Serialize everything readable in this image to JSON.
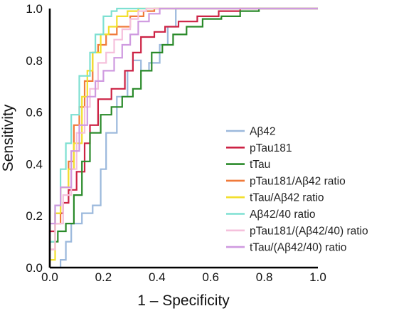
{
  "chart_data": {
    "type": "line",
    "title": "",
    "xlabel": "1 – Specificity",
    "ylabel": "Sensitivity",
    "xlim": [
      0,
      1
    ],
    "ylim": [
      0,
      1
    ],
    "xticks": [
      "0.0",
      "0.2",
      "0.4",
      "0.6",
      "0.8",
      "1.0"
    ],
    "yticks": [
      "0.0",
      "0.2",
      "0.4",
      "0.6",
      "0.8",
      "1.0"
    ],
    "grid": false,
    "legend_position": "bottom-right",
    "series": [
      {
        "name": "Aβ42",
        "color": "#9bb8dc",
        "x": [
          0,
          0.03,
          0.04,
          0.04,
          0.06,
          0.06,
          0.08,
          0.08,
          0.12,
          0.12,
          0.16,
          0.16,
          0.19,
          0.19,
          0.21,
          0.21,
          0.25,
          0.25,
          0.29,
          0.29,
          0.31,
          0.31,
          0.34,
          0.34,
          0.37,
          0.37,
          0.41,
          0.41,
          0.44,
          0.44,
          0.47,
          0.47,
          1.0
        ],
        "y": [
          0,
          0,
          0,
          0.03,
          0.03,
          0.1,
          0.1,
          0.17,
          0.17,
          0.21,
          0.21,
          0.24,
          0.24,
          0.38,
          0.38,
          0.52,
          0.52,
          0.66,
          0.66,
          0.76,
          0.76,
          0.8,
          0.8,
          0.76,
          0.76,
          0.79,
          0.79,
          0.86,
          0.86,
          0.93,
          0.93,
          1.0,
          1.0
        ]
      },
      {
        "name": "pTau181",
        "color": "#cc2244",
        "x": [
          0,
          0,
          0.02,
          0.02,
          0.05,
          0.05,
          0.07,
          0.07,
          0.1,
          0.1,
          0.13,
          0.13,
          0.15,
          0.15,
          0.18,
          0.18,
          0.23,
          0.23,
          0.28,
          0.28,
          0.31,
          0.31,
          0.34,
          0.34,
          0.39,
          0.39,
          0.43,
          0.43,
          0.48,
          0.48,
          0.55,
          0.55,
          0.63,
          0.63,
          0.71,
          0.71,
          1.0
        ],
        "y": [
          0,
          0.14,
          0.14,
          0.21,
          0.21,
          0.25,
          0.25,
          0.3,
          0.3,
          0.37,
          0.37,
          0.48,
          0.48,
          0.55,
          0.55,
          0.65,
          0.65,
          0.69,
          0.69,
          0.76,
          0.76,
          0.83,
          0.83,
          0.89,
          0.89,
          0.91,
          0.91,
          0.93,
          0.93,
          0.95,
          0.95,
          0.97,
          0.97,
          0.99,
          0.99,
          1.0,
          1.0
        ]
      },
      {
        "name": "tTau",
        "color": "#2a8a2a",
        "x": [
          0,
          0,
          0.03,
          0.03,
          0.06,
          0.06,
          0.09,
          0.09,
          0.12,
          0.12,
          0.15,
          0.15,
          0.19,
          0.19,
          0.23,
          0.23,
          0.27,
          0.27,
          0.31,
          0.31,
          0.34,
          0.34,
          0.38,
          0.38,
          0.42,
          0.42,
          0.46,
          0.46,
          0.51,
          0.51,
          0.57,
          0.57,
          0.64,
          0.64,
          0.71,
          0.71,
          0.78,
          0.78,
          1.0
        ],
        "y": [
          0,
          0.1,
          0.1,
          0.14,
          0.14,
          0.17,
          0.17,
          0.28,
          0.28,
          0.41,
          0.41,
          0.52,
          0.52,
          0.59,
          0.59,
          0.62,
          0.62,
          0.66,
          0.66,
          0.69,
          0.69,
          0.76,
          0.76,
          0.83,
          0.83,
          0.86,
          0.86,
          0.9,
          0.9,
          0.93,
          0.93,
          0.96,
          0.96,
          0.97,
          0.97,
          0.99,
          0.99,
          1.0,
          1.0
        ]
      },
      {
        "name": "pTau181/Aβ42 ratio",
        "color": "#f07a3a",
        "x": [
          0,
          0,
          0.02,
          0.02,
          0.04,
          0.04,
          0.07,
          0.07,
          0.09,
          0.09,
          0.11,
          0.11,
          0.13,
          0.13,
          0.16,
          0.16,
          0.18,
          0.18,
          0.21,
          0.21,
          0.25,
          0.25,
          0.3,
          0.3,
          0.35,
          0.35,
          0.39,
          0.39,
          1.0
        ],
        "y": [
          0,
          0.07,
          0.07,
          0.17,
          0.17,
          0.31,
          0.31,
          0.41,
          0.41,
          0.55,
          0.55,
          0.62,
          0.62,
          0.72,
          0.72,
          0.83,
          0.83,
          0.86,
          0.86,
          0.9,
          0.9,
          0.93,
          0.93,
          0.97,
          0.97,
          0.99,
          0.99,
          1.0,
          1.0
        ]
      },
      {
        "name": "tTau/Aβ42 ratio",
        "color": "#f2df2c",
        "x": [
          0,
          0,
          0.02,
          0.02,
          0.04,
          0.04,
          0.07,
          0.07,
          0.09,
          0.09,
          0.12,
          0.12,
          0.14,
          0.14,
          0.16,
          0.16,
          0.19,
          0.19,
          0.22,
          0.22,
          0.25,
          0.25,
          0.29,
          0.29,
          0.33,
          0.33,
          1.0
        ],
        "y": [
          0,
          0.03,
          0.03,
          0.21,
          0.21,
          0.31,
          0.31,
          0.38,
          0.38,
          0.48,
          0.48,
          0.66,
          0.66,
          0.76,
          0.76,
          0.83,
          0.83,
          0.9,
          0.9,
          0.93,
          0.93,
          0.97,
          0.97,
          0.99,
          0.99,
          1.0,
          1.0
        ]
      },
      {
        "name": "Aβ42/40 ratio",
        "color": "#7ee0d2",
        "x": [
          0,
          0,
          0.02,
          0.02,
          0.04,
          0.04,
          0.06,
          0.06,
          0.08,
          0.08,
          0.11,
          0.11,
          0.15,
          0.15,
          0.17,
          0.17,
          0.2,
          0.2,
          0.23,
          0.23,
          0.25,
          0.25,
          1.0
        ],
        "y": [
          0,
          0.1,
          0.1,
          0.24,
          0.24,
          0.38,
          0.38,
          0.48,
          0.48,
          0.59,
          0.59,
          0.74,
          0.74,
          0.83,
          0.83,
          0.9,
          0.9,
          0.97,
          0.97,
          0.99,
          0.99,
          1.0,
          1.0
        ]
      },
      {
        "name": "pTau181/(Aβ42/40) ratio",
        "color": "#f5c0dc",
        "x": [
          0,
          0,
          0.02,
          0.02,
          0.05,
          0.05,
          0.08,
          0.08,
          0.1,
          0.1,
          0.13,
          0.13,
          0.15,
          0.15,
          0.18,
          0.18,
          0.21,
          0.21,
          0.24,
          0.24,
          0.27,
          0.27,
          0.3,
          0.3,
          0.33,
          0.33,
          0.36,
          0.36,
          1.0
        ],
        "y": [
          0,
          0.07,
          0.07,
          0.17,
          0.17,
          0.28,
          0.28,
          0.38,
          0.38,
          0.52,
          0.52,
          0.62,
          0.62,
          0.69,
          0.69,
          0.79,
          0.79,
          0.83,
          0.83,
          0.88,
          0.88,
          0.92,
          0.92,
          0.96,
          0.96,
          0.99,
          0.99,
          1.0,
          1.0
        ]
      },
      {
        "name": "tTau/(Aβ42/40) ratio",
        "color": "#cf9ae0",
        "x": [
          0,
          0,
          0.02,
          0.02,
          0.04,
          0.04,
          0.08,
          0.08,
          0.11,
          0.11,
          0.14,
          0.14,
          0.17,
          0.17,
          0.2,
          0.2,
          0.24,
          0.24,
          0.27,
          0.27,
          0.3,
          0.3,
          0.33,
          0.33,
          0.37,
          0.37,
          0.41,
          0.41,
          1.0
        ],
        "y": [
          0,
          0.17,
          0.17,
          0.24,
          0.24,
          0.31,
          0.31,
          0.45,
          0.45,
          0.55,
          0.55,
          0.66,
          0.66,
          0.72,
          0.72,
          0.76,
          0.76,
          0.81,
          0.81,
          0.86,
          0.86,
          0.9,
          0.9,
          0.95,
          0.95,
          0.98,
          0.98,
          1.0,
          1.0
        ]
      }
    ]
  }
}
